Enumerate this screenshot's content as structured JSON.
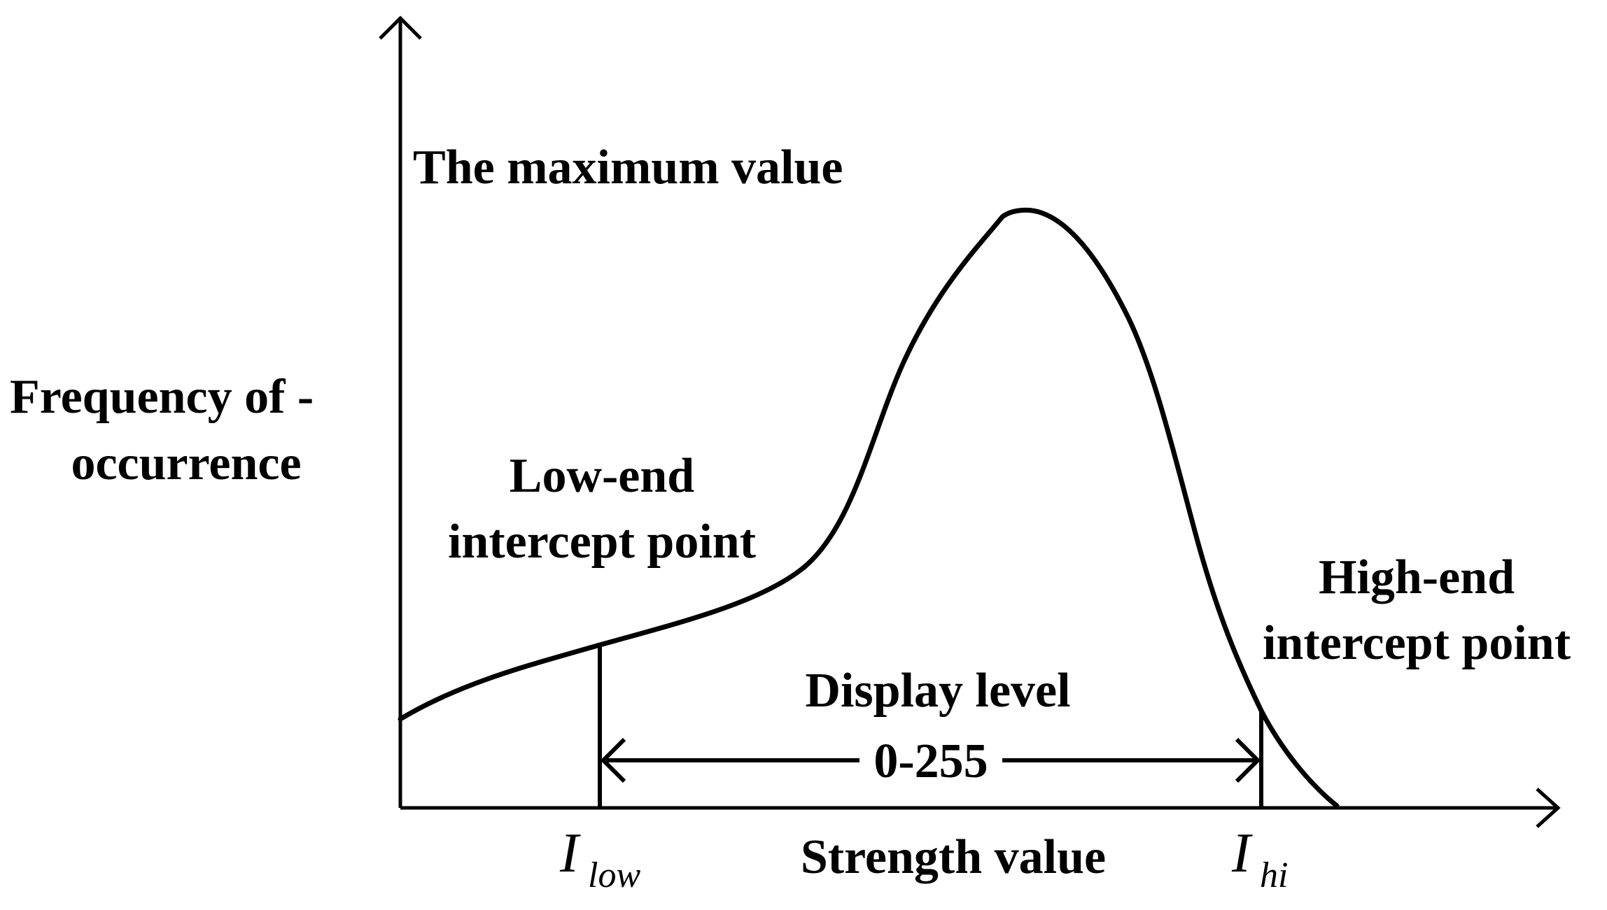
{
  "diagram": {
    "title_label": "The maximum value",
    "y_label_line1": "Frequency of -",
    "y_label_line2": "occurrence",
    "x_label": "Strength value",
    "low_label_line1": "Low-end",
    "low_label_line2": "intercept point",
    "high_label_line1": "High-end",
    "high_label_line2": "intercept point",
    "display_label": "Display level",
    "range_label": "0-255",
    "i_low_symbol": "I",
    "i_low_subscript": "low",
    "i_hi_symbol": "I",
    "i_hi_subscript": "hi"
  }
}
